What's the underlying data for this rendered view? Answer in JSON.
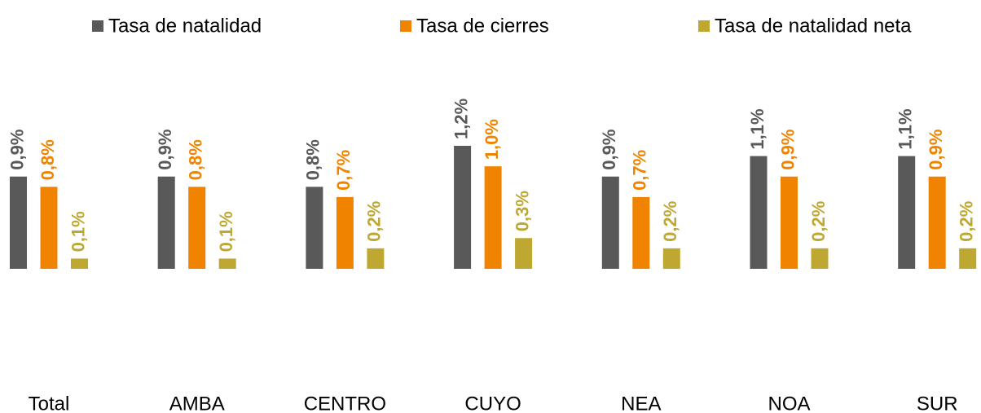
{
  "chart_data": {
    "type": "bar",
    "categories": [
      "Total",
      "AMBA",
      "CENTRO",
      "CUYO",
      "NEA",
      "NOA",
      "SUR"
    ],
    "series": [
      {
        "name": "Tasa de natalidad",
        "color": "#595959",
        "values": [
          0.9,
          0.9,
          0.8,
          1.2,
          0.9,
          1.1,
          1.1
        ],
        "value_labels": [
          "0,9%",
          "0,9%",
          "0,8%",
          "1,2%",
          "0,9%",
          "1,1%",
          "1,1%"
        ]
      },
      {
        "name": "Tasa de cierres",
        "color": "#f08400",
        "values": [
          0.8,
          0.8,
          0.7,
          1.0,
          0.7,
          0.9,
          0.9
        ],
        "value_labels": [
          "0,8%",
          "0,8%",
          "0,7%",
          "1,0%",
          "0,7%",
          "0,9%",
          "0,9%"
        ]
      },
      {
        "name": "Tasa de natalidad neta",
        "color": "#bfa832",
        "values": [
          0.1,
          0.1,
          0.2,
          0.3,
          0.2,
          0.2,
          0.2
        ],
        "value_labels": [
          "0,1%",
          "0,1%",
          "0,2%",
          "0,3%",
          "0,2%",
          "0,2%",
          "0,2%"
        ]
      }
    ],
    "legend": "top"
  }
}
